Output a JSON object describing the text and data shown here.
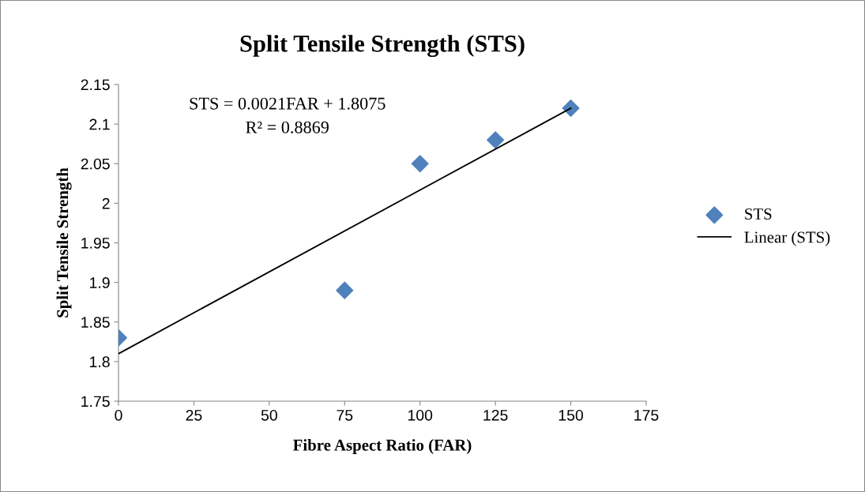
{
  "chart_data": {
    "type": "scatter",
    "title": "Split Tensile Strength (STS)",
    "xlabel": "Fibre Aspect Ratio (FAR)",
    "ylabel": "Split Tensile Strength",
    "annotations": [
      "STS = 0.0021FAR + 1.8075",
      "R² = 0.8869"
    ],
    "x": [
      0,
      75,
      100,
      125,
      150
    ],
    "series": [
      {
        "name": "STS",
        "color": "#4f81bd",
        "values": [
          1.83,
          1.89,
          2.05,
          2.08,
          2.12
        ],
        "marker": "diamond"
      },
      {
        "name": "Linear (STS)",
        "type": "line",
        "color": "#000000",
        "x": [
          0,
          150
        ],
        "values": [
          1.81,
          2.12
        ],
        "marker": "none",
        "line_style": "solid"
      }
    ],
    "xlim": [
      0,
      175
    ],
    "xticks": [
      0,
      25,
      50,
      75,
      100,
      125,
      150,
      175
    ],
    "ylim": [
      1.75,
      2.15
    ],
    "yticks": [
      1.75,
      1.8,
      1.85,
      1.9,
      1.95,
      2,
      2.05,
      2.1,
      2.15
    ],
    "grid": false,
    "legend": "right"
  }
}
